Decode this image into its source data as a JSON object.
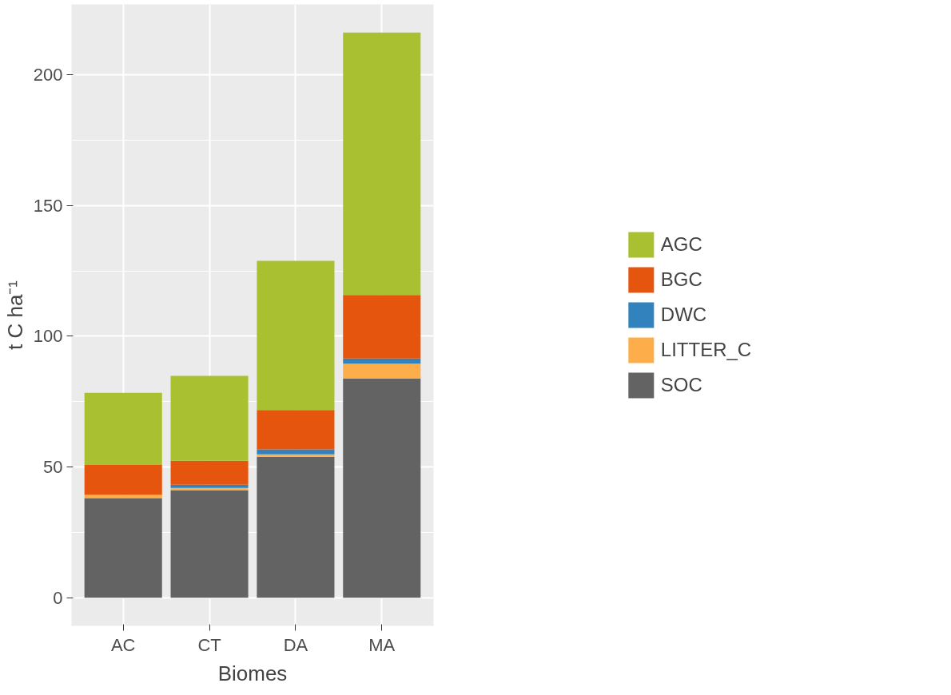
{
  "chart_data": {
    "type": "bar",
    "stacked": true,
    "xlabel": "Biomes",
    "ylabel": "t C ha⁻¹",
    "categories": [
      "AC",
      "CT",
      "DA",
      "MA"
    ],
    "series": [
      {
        "name": "SOC",
        "color": "#636363",
        "values": [
          38.1,
          41.0,
          53.9,
          83.8
        ]
      },
      {
        "name": "LITTER_C",
        "color": "#fdae4b",
        "values": [
          1.2,
          1.0,
          0.9,
          5.7
        ]
      },
      {
        "name": "DWC",
        "color": "#3182bd",
        "values": [
          0,
          1.2,
          1.9,
          2.0
        ]
      },
      {
        "name": "BGC",
        "color": "#e6550d",
        "values": [
          11.5,
          9.2,
          15.1,
          24.3
        ]
      },
      {
        "name": "AGC",
        "color": "#a9c030",
        "values": [
          27.5,
          32.4,
          57.0,
          100.3
        ]
      }
    ],
    "ylim": [
      -10.8,
      226.9
    ],
    "yticks": [
      0,
      50,
      100,
      150,
      200
    ],
    "grid": true,
    "legend": "right"
  }
}
